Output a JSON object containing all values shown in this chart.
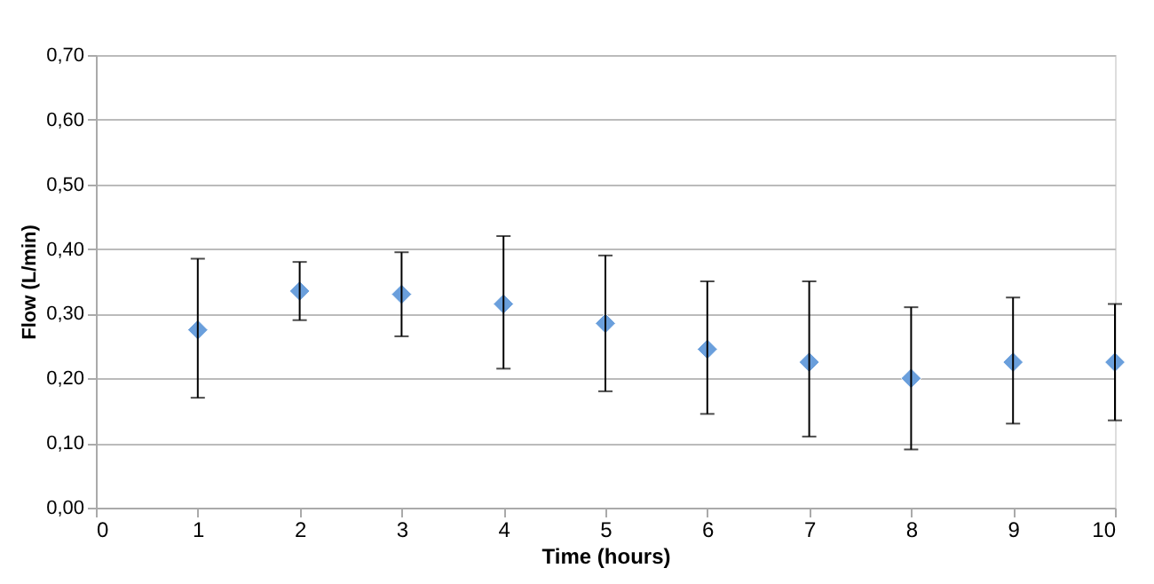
{
  "chart_data": {
    "type": "scatter",
    "xlabel": "Time (hours)",
    "ylabel": "Flow (L/min)",
    "x": [
      1,
      2,
      3,
      4,
      5,
      6,
      7,
      8,
      9,
      10
    ],
    "series": [
      {
        "color": "#6a9fdc",
        "values": [
          0.275,
          0.335,
          0.33,
          0.315,
          0.285,
          0.245,
          0.225,
          0.2,
          0.225,
          0.225
        ],
        "errors": [
          [
            0.17,
            0.385
          ],
          [
            0.29,
            0.38
          ],
          [
            0.265,
            0.395
          ],
          [
            0.215,
            0.42
          ],
          [
            0.18,
            0.39
          ],
          [
            0.145,
            0.35
          ],
          [
            0.11,
            0.35
          ],
          [
            0.09,
            0.31
          ],
          [
            0.13,
            0.325
          ],
          [
            0.135,
            0.315
          ]
        ]
      }
    ],
    "xlim": [
      0,
      10
    ],
    "xticks": [
      0,
      1,
      2,
      3,
      4,
      5,
      6,
      7,
      8,
      9,
      10
    ],
    "ylim": [
      0,
      0.7
    ],
    "yticks": [
      {
        "value": 0,
        "label": "0,00"
      },
      {
        "value": 0.1,
        "label": "0,10"
      },
      {
        "value": 0.2,
        "label": "0,20"
      },
      {
        "value": 0.3,
        "label": "0,30"
      },
      {
        "value": 0.4,
        "label": "0,40"
      },
      {
        "value": 0.5,
        "label": "0,50"
      },
      {
        "value": 0.6,
        "label": "0,60"
      },
      {
        "value": 0.7,
        "label": "0,70"
      }
    ],
    "grid": "y",
    "marker": "diamond"
  }
}
